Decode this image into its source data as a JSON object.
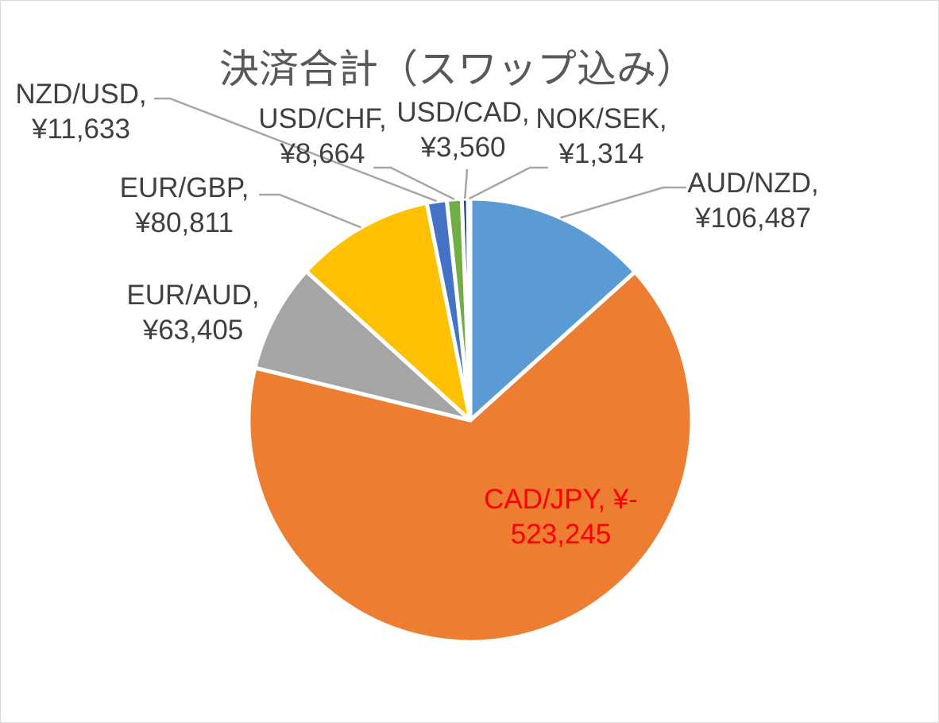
{
  "chart_data": {
    "type": "pie",
    "title": "決済合計（スワップ込み）",
    "slices": [
      {
        "name": "AUD/NZD",
        "value_label": "¥106,487",
        "value": 106487,
        "color": "#5b9bd5"
      },
      {
        "name": "CAD/JPY",
        "value_label": "¥-523,245",
        "value": -523245,
        "color": "#ed7d31",
        "label_color": "#ff0000"
      },
      {
        "name": "EUR/AUD",
        "value_label": "¥63,405",
        "value": 63405,
        "color": "#a5a5a5"
      },
      {
        "name": "EUR/GBP",
        "value_label": "¥80,811",
        "value": 80811,
        "color": "#ffc000"
      },
      {
        "name": "NZD/USD",
        "value_label": "¥11,633",
        "value": 11633,
        "color": "#4472c4"
      },
      {
        "name": "USD/CHF",
        "value_label": "¥8,664",
        "value": 8664,
        "color": "#70ad47"
      },
      {
        "name": "USD/CAD",
        "value_label": "¥3,560",
        "value": 3560,
        "color": "#264478"
      },
      {
        "name": "NOK/SEK",
        "value_label": "¥1,314",
        "value": 1314,
        "color": "#9e480e"
      }
    ],
    "labels": {
      "AUD/NZD": [
        "AUD/NZD,",
        "¥106,487"
      ],
      "CAD/JPY": [
        "CAD/JPY, ¥-",
        "523,245"
      ],
      "EUR/AUD": [
        "EUR/AUD,",
        "¥63,405"
      ],
      "EUR/GBP": [
        "EUR/GBP,",
        "¥80,811"
      ],
      "NZD/USD": [
        "NZD/USD,",
        "¥11,633"
      ],
      "USD/CHF": [
        "USD/CHF,",
        "¥8,664"
      ],
      "USD/CAD": [
        "USD/CAD,",
        "¥3,560"
      ],
      "NOK/SEK": [
        "NOK/SEK,",
        "¥1,314"
      ]
    }
  }
}
